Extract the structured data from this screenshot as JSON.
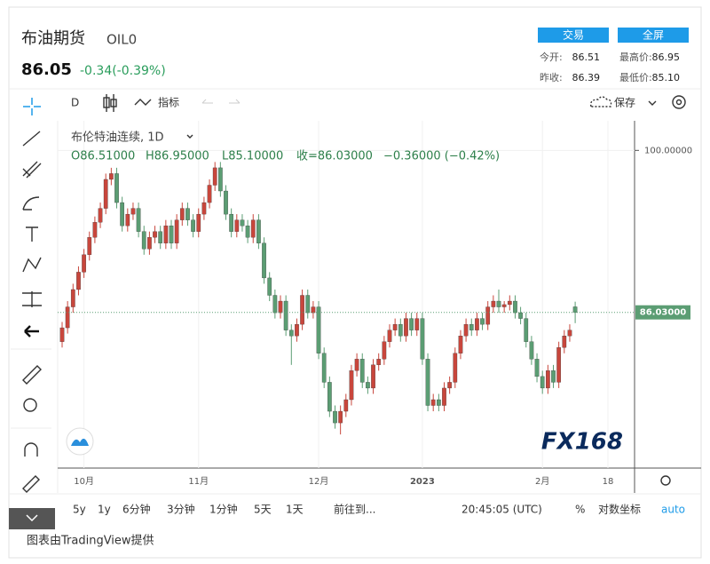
{
  "header": {
    "name": "布油期货",
    "code": "OIL0",
    "price": "86.05",
    "change": "-0.34(-0.39%)",
    "btn_trade": "交易",
    "btn_full": "全屏",
    "stats": [
      [
        "今开:",
        "86.51"
      ],
      [
        "最高价:",
        "86.95"
      ],
      [
        "昨收:",
        "86.39"
      ],
      [
        "最低价:",
        "85.10"
      ]
    ]
  },
  "toolbar": {
    "interval": "D",
    "indicators": "指标",
    "save": "保存"
  },
  "chart_data": {
    "type": "candlestick",
    "title": "布伦特油连续, 1D",
    "legend": [
      "O86.51000",
      "H86.95000",
      "L85.10000",
      "收=86.03000",
      "−0.36000 (−0.42%)"
    ],
    "up_color": "#c8463c",
    "down_color": "#5b9d73",
    "ylim": [
      72.6,
      102.4
    ],
    "yticks": [
      {
        "value": 100,
        "label": "100.00000"
      }
    ],
    "last_price_label": "86.03000",
    "xticks": [
      {
        "value": 4,
        "label": "10月"
      },
      {
        "value": 25,
        "label": "11月"
      },
      {
        "value": 47,
        "label": "12月"
      },
      {
        "value": 66,
        "label": "2023"
      },
      {
        "value": 88,
        "label": "2月"
      },
      {
        "value": 100,
        "label": "18"
      }
    ],
    "candles": [
      [
        83.5,
        85.2,
        83.0,
        84.7
      ],
      [
        84.7,
        87.0,
        84.2,
        86.5
      ],
      [
        86.5,
        88.5,
        86.0,
        88.0
      ],
      [
        88.0,
        90.0,
        87.5,
        89.5
      ],
      [
        89.5,
        91.5,
        89.0,
        91.0
      ],
      [
        91.0,
        93.0,
        90.5,
        92.5
      ],
      [
        92.5,
        94.3,
        92.0,
        93.8
      ],
      [
        93.8,
        95.5,
        93.3,
        95.0
      ],
      [
        95.0,
        98.0,
        94.5,
        97.5
      ],
      [
        97.5,
        98.5,
        97.0,
        98.0
      ],
      [
        98.0,
        98.5,
        95.0,
        95.5
      ],
      [
        95.5,
        96.0,
        93.0,
        93.5
      ],
      [
        93.5,
        95.0,
        93.0,
        94.5
      ],
      [
        94.5,
        95.5,
        94.0,
        95.0
      ],
      [
        95.0,
        95.5,
        92.5,
        93.0
      ],
      [
        93.0,
        93.5,
        91.0,
        91.5
      ],
      [
        91.5,
        93.0,
        91.0,
        92.5
      ],
      [
        92.5,
        93.5,
        92.0,
        93.0
      ],
      [
        93.0,
        93.5,
        91.5,
        92.0
      ],
      [
        92.0,
        94.0,
        91.5,
        93.5
      ],
      [
        93.5,
        94.0,
        91.5,
        92.0
      ],
      [
        92.0,
        94.5,
        91.5,
        94.0
      ],
      [
        94.0,
        95.5,
        93.5,
        95.0
      ],
      [
        95.0,
        95.5,
        93.5,
        94.0
      ],
      [
        94.0,
        94.5,
        92.5,
        93.0
      ],
      [
        93.0,
        95.0,
        92.5,
        94.5
      ],
      [
        94.5,
        96.0,
        94.0,
        95.5
      ],
      [
        95.5,
        97.5,
        95.0,
        97.0
      ],
      [
        97.0,
        99.0,
        96.5,
        98.5
      ],
      [
        98.5,
        99.0,
        96.0,
        96.5
      ],
      [
        96.5,
        97.0,
        94.0,
        94.5
      ],
      [
        94.5,
        95.0,
        92.5,
        93.0
      ],
      [
        93.0,
        94.5,
        92.5,
        94.0
      ],
      [
        94.0,
        94.5,
        93.0,
        93.5
      ],
      [
        93.5,
        94.0,
        92.0,
        92.5
      ],
      [
        92.5,
        94.5,
        92.0,
        94.0
      ],
      [
        94.0,
        94.5,
        91.5,
        92.0
      ],
      [
        92.0,
        92.5,
        88.5,
        89.0
      ],
      [
        89.0,
        89.5,
        87.0,
        87.5
      ],
      [
        87.5,
        88.0,
        85.5,
        86.0
      ],
      [
        86.0,
        87.5,
        85.5,
        87.0
      ],
      [
        87.0,
        87.5,
        84.0,
        84.5
      ],
      [
        84.5,
        85.0,
        81.5,
        84.0
      ],
      [
        84.0,
        85.5,
        83.5,
        85.0
      ],
      [
        85.0,
        88.0,
        84.5,
        87.5
      ],
      [
        87.5,
        88.0,
        85.5,
        86.0
      ],
      [
        86.0,
        87.0,
        85.5,
        86.5
      ],
      [
        86.5,
        87.0,
        82.0,
        82.5
      ],
      [
        82.5,
        83.0,
        79.5,
        80.0
      ],
      [
        80.0,
        80.5,
        77.0,
        77.5
      ],
      [
        77.5,
        78.0,
        76.0,
        76.5
      ],
      [
        76.5,
        78.0,
        75.5,
        77.5
      ],
      [
        77.5,
        79.0,
        77.0,
        78.5
      ],
      [
        78.5,
        81.5,
        78.0,
        81.0
      ],
      [
        81.0,
        82.5,
        80.5,
        82.0
      ],
      [
        82.0,
        82.5,
        79.5,
        80.0
      ],
      [
        80.0,
        80.5,
        79.0,
        79.5
      ],
      [
        79.5,
        82.0,
        79.0,
        81.5
      ],
      [
        81.5,
        82.5,
        81.0,
        82.0
      ],
      [
        82.0,
        84.0,
        81.5,
        83.5
      ],
      [
        83.5,
        85.0,
        83.0,
        84.5
      ],
      [
        84.5,
        85.5,
        84.0,
        85.0
      ],
      [
        85.0,
        85.5,
        83.5,
        84.0
      ],
      [
        84.0,
        86.0,
        83.5,
        85.5
      ],
      [
        85.5,
        86.0,
        84.0,
        84.5
      ],
      [
        84.5,
        86.0,
        84.0,
        85.5
      ],
      [
        85.5,
        86.0,
        81.5,
        82.0
      ],
      [
        82.0,
        82.5,
        77.5,
        78.0
      ],
      [
        78.0,
        79.0,
        77.5,
        78.5
      ],
      [
        78.5,
        79.0,
        77.5,
        78.0
      ],
      [
        78.0,
        80.0,
        77.5,
        79.5
      ],
      [
        79.5,
        80.5,
        79.0,
        80.0
      ],
      [
        80.0,
        83.0,
        79.5,
        82.5
      ],
      [
        82.5,
        84.5,
        82.0,
        84.0
      ],
      [
        84.0,
        85.5,
        83.5,
        85.0
      ],
      [
        85.0,
        85.5,
        84.0,
        84.5
      ],
      [
        84.5,
        86.0,
        84.0,
        85.5
      ],
      [
        85.5,
        86.0,
        84.5,
        85.0
      ],
      [
        85.0,
        87.0,
        84.5,
        86.5
      ],
      [
        86.5,
        87.5,
        86.0,
        87.0
      ],
      [
        87.0,
        88.0,
        86.0,
        86.5
      ],
      [
        86.5,
        87.0,
        86.0,
        86.7
      ],
      [
        86.7,
        87.5,
        86.2,
        87.0
      ],
      [
        87.0,
        87.5,
        85.5,
        86.0
      ],
      [
        86.0,
        86.5,
        85.0,
        85.5
      ],
      [
        85.5,
        86.0,
        83.0,
        83.5
      ],
      [
        83.5,
        84.0,
        81.5,
        82.0
      ],
      [
        82.0,
        82.5,
        80.0,
        80.5
      ],
      [
        80.5,
        81.0,
        79.0,
        79.5
      ],
      [
        79.5,
        81.5,
        79.0,
        81.0
      ],
      [
        81.0,
        81.5,
        79.5,
        80.0
      ],
      [
        80.0,
        83.5,
        79.5,
        83.0
      ],
      [
        83.0,
        84.5,
        82.5,
        84.0
      ],
      [
        84.0,
        85.0,
        83.5,
        84.5
      ],
      [
        86.51,
        86.95,
        85.1,
        86.03
      ]
    ]
  },
  "bottom": {
    "ranges": [
      "5y",
      "1y",
      "6分钟",
      "3分钟",
      "1分钟",
      "5天",
      "1天"
    ],
    "goto": "前往到...",
    "time": "20:45:05 (UTC)",
    "pct": "%",
    "log": "对数坐标",
    "auto": "auto"
  },
  "footer": "图表由TradingView提供",
  "logo": "FX168"
}
